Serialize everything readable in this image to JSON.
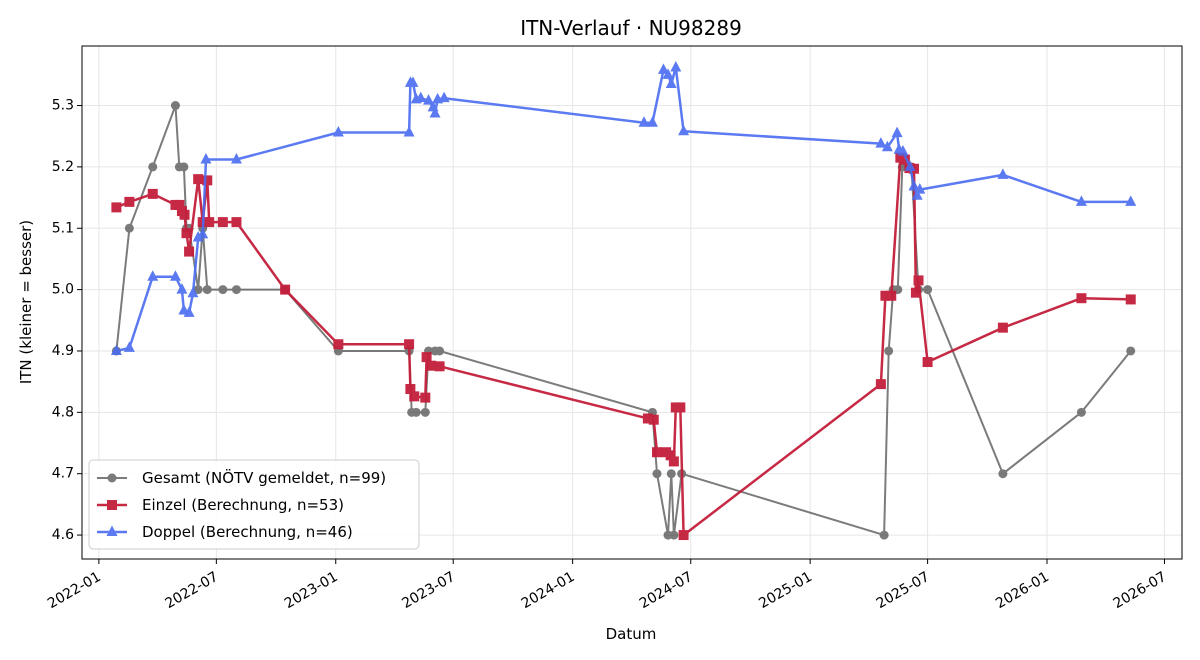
{
  "chart_data": {
    "type": "line",
    "title": "ITN-Verlauf · NU98289",
    "xlabel": "Datum",
    "ylabel": "ITN  (kleiner = besser)",
    "x_ticks": [
      "2022-01",
      "2022-07",
      "2023-01",
      "2023-07",
      "2024-01",
      "2024-07",
      "2025-01",
      "2025-07",
      "2026-01",
      "2026-07"
    ],
    "y_ticks": [
      "4.6",
      "4.7",
      "4.8",
      "4.9",
      "5.0",
      "5.1",
      "5.2",
      "5.3"
    ],
    "xlim": [
      "2021-12-06",
      "2026-07-28"
    ],
    "ylim": [
      4.561,
      5.397
    ],
    "grid": true,
    "legend_position": "lower left",
    "series": [
      {
        "name": "Gesamt (NÖTV gemeldet, n=99)",
        "color": "#444444",
        "marker": "circle",
        "points": [
          [
            "2022-01-28",
            4.9
          ],
          [
            "2022-02-17",
            5.1
          ],
          [
            "2022-03-25",
            5.2
          ],
          [
            "2022-04-29",
            5.3
          ],
          [
            "2022-05-05",
            5.2
          ],
          [
            "2022-05-12",
            5.2
          ],
          [
            "2022-05-16",
            5.1
          ],
          [
            "2022-05-20",
            5.1
          ],
          [
            "2022-06-03",
            5.0
          ],
          [
            "2022-06-10",
            5.1
          ],
          [
            "2022-06-17",
            5.0
          ],
          [
            "2022-07-11",
            5.0
          ],
          [
            "2022-08-01",
            5.0
          ],
          [
            "2022-10-15",
            5.0
          ],
          [
            "2023-01-05",
            4.9
          ],
          [
            "2023-04-24",
            4.9
          ],
          [
            "2023-04-28",
            4.8
          ],
          [
            "2023-05-05",
            4.8
          ],
          [
            "2023-05-19",
            4.8
          ],
          [
            "2023-05-24",
            4.9
          ],
          [
            "2023-06-03",
            4.9
          ],
          [
            "2023-06-10",
            4.9
          ],
          [
            "2024-05-03",
            4.8
          ],
          [
            "2024-05-10",
            4.7
          ],
          [
            "2024-05-27",
            4.6
          ],
          [
            "2024-06-01",
            4.7
          ],
          [
            "2024-06-05",
            4.6
          ],
          [
            "2024-06-17",
            4.7
          ],
          [
            "2025-04-25",
            4.6
          ],
          [
            "2025-05-02",
            4.9
          ],
          [
            "2025-05-09",
            5.0
          ],
          [
            "2025-05-16",
            5.0
          ],
          [
            "2025-05-23",
            5.2
          ],
          [
            "2025-06-06",
            5.2
          ],
          [
            "2025-06-17",
            5.0
          ],
          [
            "2025-07-01",
            5.0
          ],
          [
            "2025-10-25",
            4.7
          ],
          [
            "2026-02-23",
            4.8
          ],
          [
            "2026-05-10",
            4.9
          ]
        ]
      },
      {
        "name": "Einzel (Berechnung, n=53)",
        "color": "#c41e3a",
        "marker": "square",
        "points": [
          [
            "2022-01-28",
            5.134
          ],
          [
            "2022-02-17",
            5.143
          ],
          [
            "2022-03-25",
            5.156
          ],
          [
            "2022-04-29",
            5.138
          ],
          [
            "2022-05-05",
            5.138
          ],
          [
            "2022-05-09",
            5.128
          ],
          [
            "2022-05-13",
            5.122
          ],
          [
            "2022-05-16",
            5.092
          ],
          [
            "2022-05-20",
            5.062
          ],
          [
            "2022-06-03",
            5.18
          ],
          [
            "2022-06-10",
            5.11
          ],
          [
            "2022-06-17",
            5.178
          ],
          [
            "2022-06-20",
            5.11
          ],
          [
            "2022-07-11",
            5.11
          ],
          [
            "2022-08-01",
            5.11
          ],
          [
            "2022-10-15",
            5.0
          ],
          [
            "2023-01-05",
            4.911
          ],
          [
            "2023-04-24",
            4.911
          ],
          [
            "2023-04-26",
            4.838
          ],
          [
            "2023-05-02",
            4.826
          ],
          [
            "2023-05-19",
            4.824
          ],
          [
            "2023-05-21",
            4.89
          ],
          [
            "2023-05-28",
            4.876
          ],
          [
            "2023-06-10",
            4.875
          ],
          [
            "2024-04-26",
            4.79
          ],
          [
            "2024-05-05",
            4.788
          ],
          [
            "2024-05-10",
            4.735
          ],
          [
            "2024-05-24",
            4.735
          ],
          [
            "2024-05-31",
            4.73
          ],
          [
            "2024-06-05",
            4.72
          ],
          [
            "2024-06-08",
            4.808
          ],
          [
            "2024-06-15",
            4.808
          ],
          [
            "2024-06-20",
            4.6
          ],
          [
            "2025-04-20",
            4.846
          ],
          [
            "2025-04-27",
            4.99
          ],
          [
            "2025-05-06",
            4.99
          ],
          [
            "2025-05-20",
            5.215
          ],
          [
            "2025-05-27",
            5.212
          ],
          [
            "2025-06-03",
            5.198
          ],
          [
            "2025-06-10",
            5.197
          ],
          [
            "2025-06-13",
            4.995
          ],
          [
            "2025-06-17",
            5.015
          ],
          [
            "2025-07-01",
            4.882
          ],
          [
            "2025-10-25",
            4.938
          ],
          [
            "2026-02-23",
            4.986
          ],
          [
            "2026-05-10",
            4.984
          ]
        ]
      },
      {
        "name": "Doppel (Berechnung, n=46)",
        "color": "#4a6cf0",
        "marker": "triangle",
        "points": [
          [
            "2022-01-28",
            4.9
          ],
          [
            "2022-02-17",
            4.905
          ],
          [
            "2022-03-25",
            5.021
          ],
          [
            "2022-04-29",
            5.021
          ],
          [
            "2022-05-09",
            5.0
          ],
          [
            "2022-05-12",
            4.966
          ],
          [
            "2022-05-20",
            4.962
          ],
          [
            "2022-05-26",
            4.994
          ],
          [
            "2022-06-03",
            5.085
          ],
          [
            "2022-06-10",
            5.09
          ],
          [
            "2022-06-15",
            5.212
          ],
          [
            "2022-08-01",
            5.212
          ],
          [
            "2023-01-05",
            5.256
          ],
          [
            "2023-04-24",
            5.256
          ],
          [
            "2023-04-26",
            5.337
          ],
          [
            "2023-04-30",
            5.337
          ],
          [
            "2023-05-05",
            5.31
          ],
          [
            "2023-05-12",
            5.312
          ],
          [
            "2023-05-24",
            5.308
          ],
          [
            "2023-05-31",
            5.297
          ],
          [
            "2023-06-03",
            5.287
          ],
          [
            "2023-06-07",
            5.31
          ],
          [
            "2023-06-17",
            5.312
          ],
          [
            "2024-04-20",
            5.272
          ],
          [
            "2024-05-03",
            5.272
          ],
          [
            "2024-05-20",
            5.358
          ],
          [
            "2024-05-27",
            5.35
          ],
          [
            "2024-06-01",
            5.335
          ],
          [
            "2024-06-08",
            5.362
          ],
          [
            "2024-06-20",
            5.258
          ],
          [
            "2025-04-20",
            5.238
          ],
          [
            "2025-04-30",
            5.232
          ],
          [
            "2025-05-15",
            5.255
          ],
          [
            "2025-05-18",
            5.228
          ],
          [
            "2025-05-24",
            5.225
          ],
          [
            "2025-06-04",
            5.2
          ],
          [
            "2025-06-10",
            5.168
          ],
          [
            "2025-06-15",
            5.153
          ],
          [
            "2025-06-19",
            5.163
          ],
          [
            "2025-10-25",
            5.187
          ],
          [
            "2026-02-23",
            5.143
          ],
          [
            "2026-05-10",
            5.143
          ]
        ]
      }
    ]
  }
}
